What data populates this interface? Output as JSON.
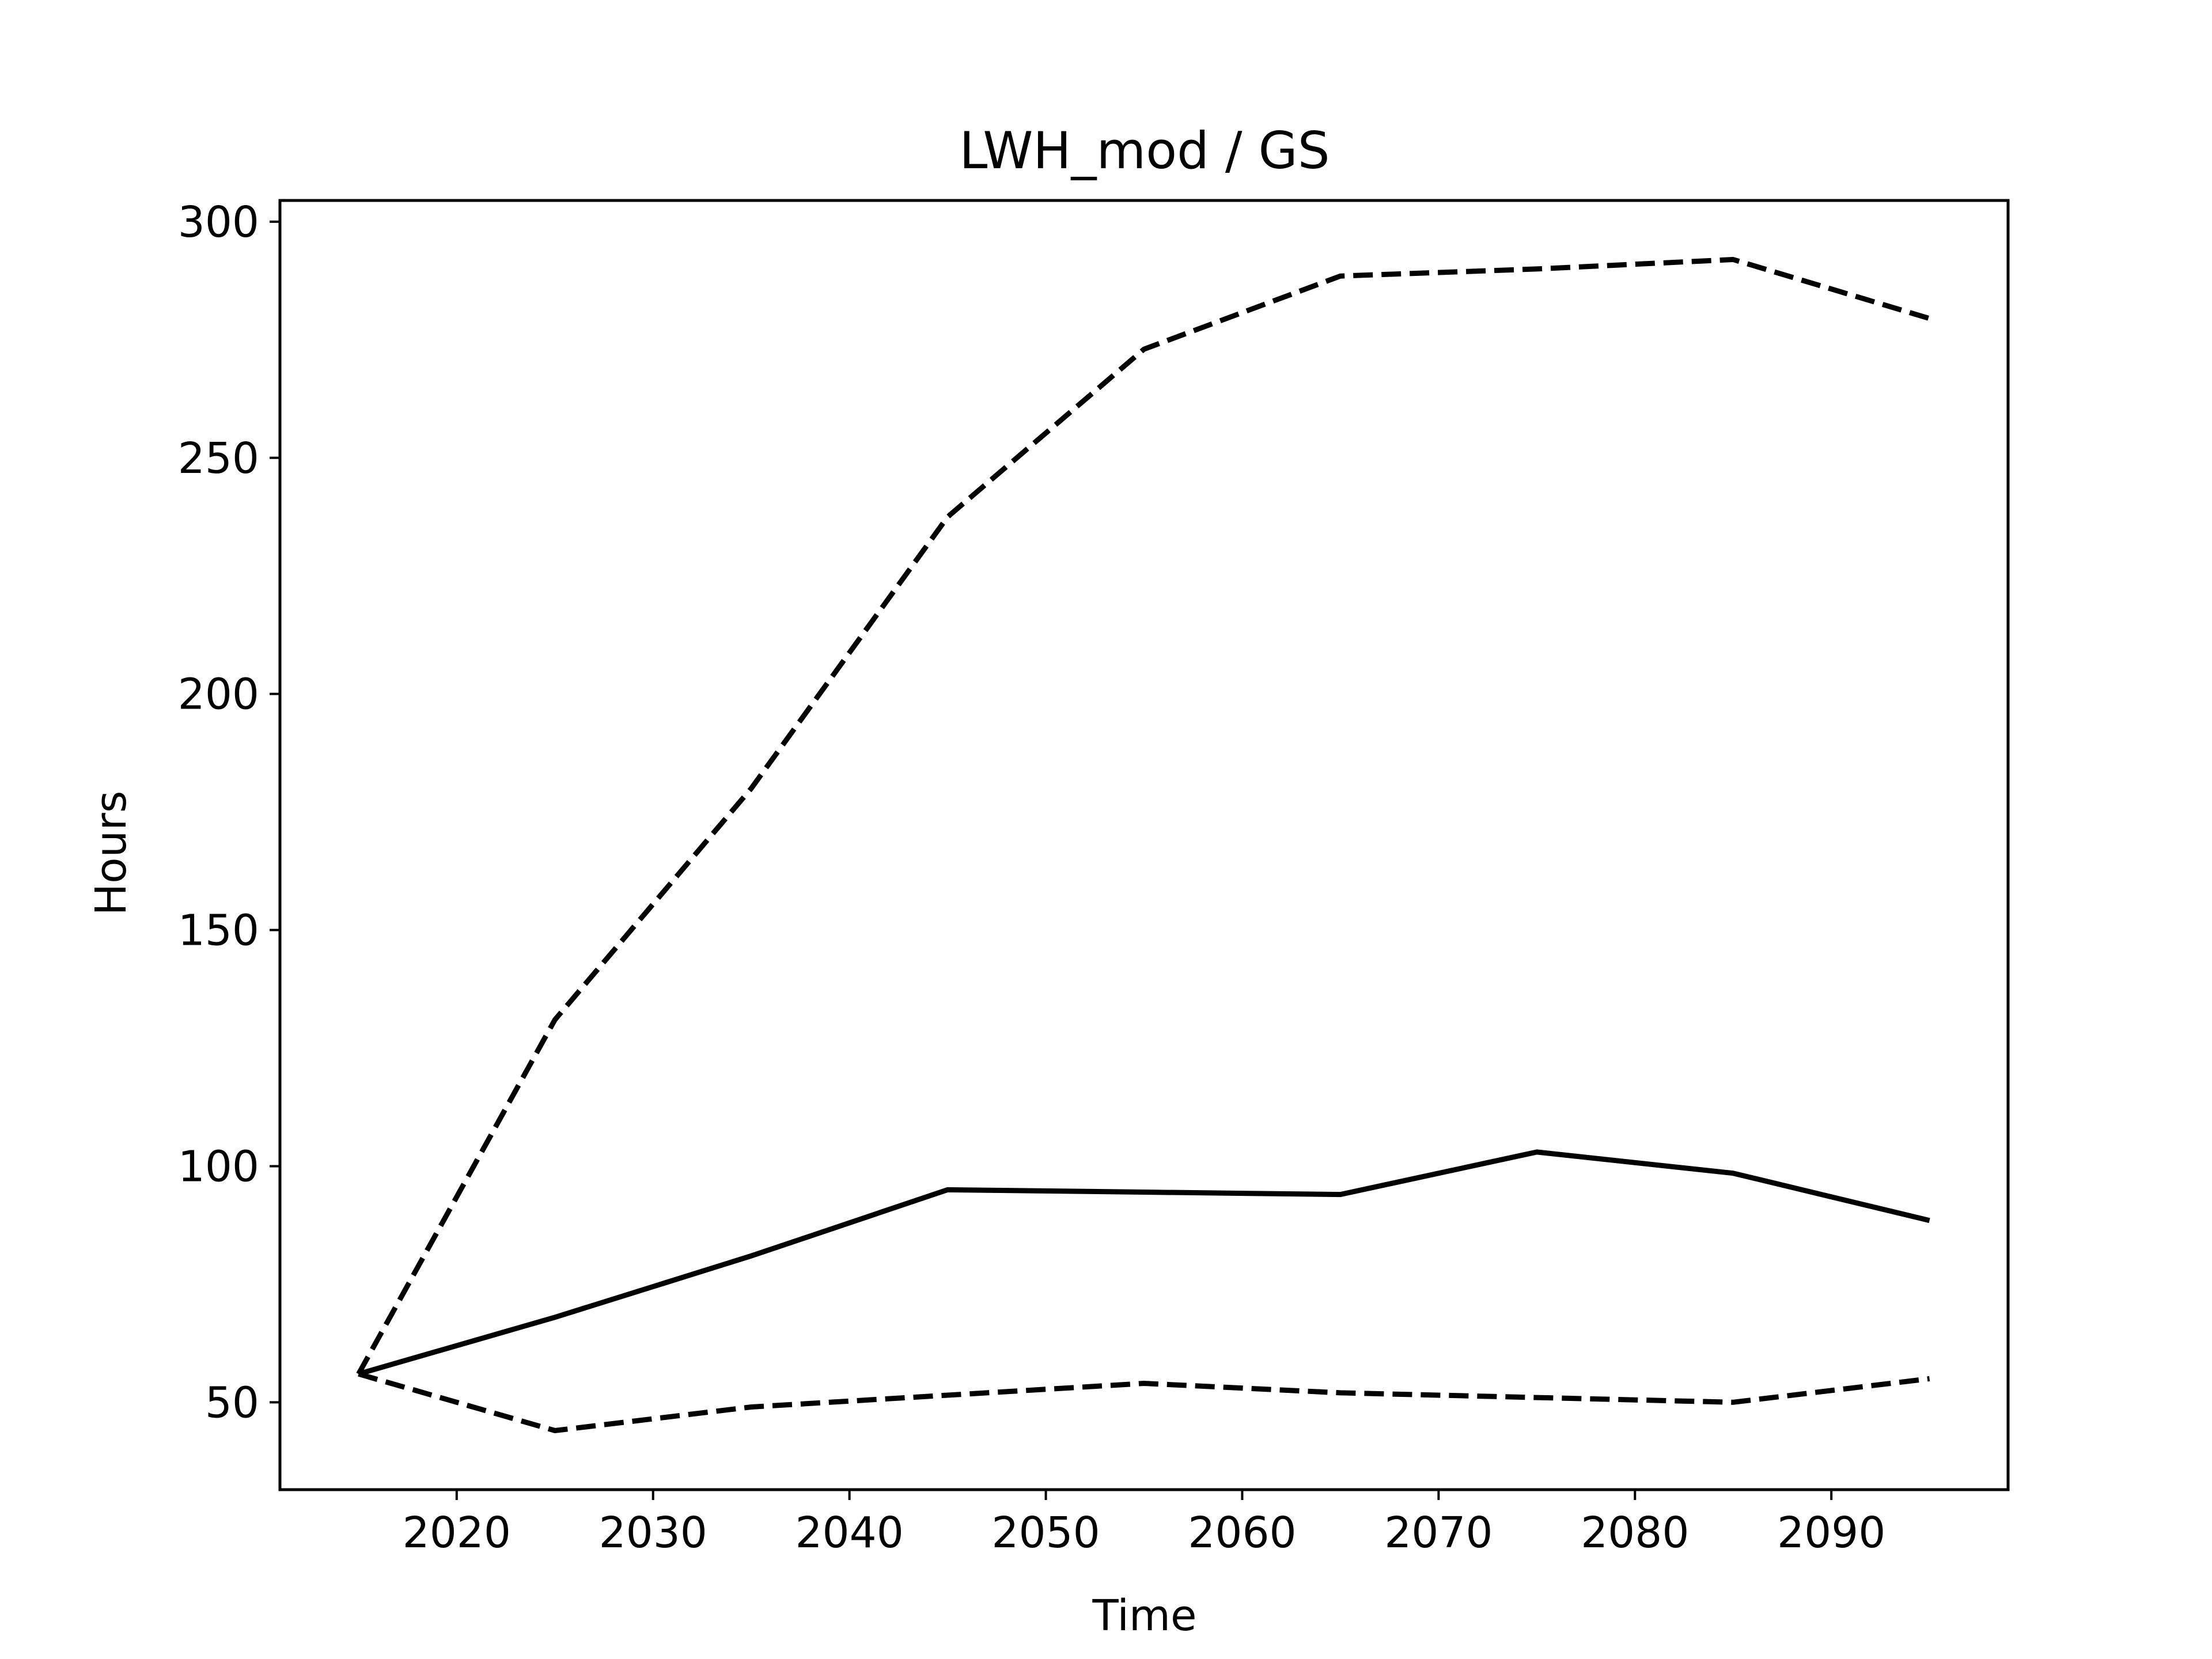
{
  "chart_data": {
    "type": "line",
    "title": "LWH_mod / GS",
    "xlabel": "Time",
    "ylabel": "Hours",
    "xlim": [
      2011,
      2099
    ],
    "ylim": [
      31.5,
      304.5
    ],
    "xticks": [
      2020,
      2030,
      2040,
      2050,
      2060,
      2070,
      2080,
      2090
    ],
    "yticks": [
      50,
      100,
      150,
      200,
      250,
      300
    ],
    "x": [
      2015,
      2025,
      2035,
      2045,
      2055,
      2065,
      2075,
      2085,
      2095
    ],
    "series": [
      {
        "style": "solid",
        "color": "#000000",
        "values": [
          56,
          68,
          81,
          95,
          94.5,
          94,
          103,
          98.5,
          88.5
        ]
      },
      {
        "style": "dashed",
        "color": "#000000",
        "values": [
          56,
          131,
          180,
          237.5,
          273,
          288.5,
          290,
          292,
          279.5
        ]
      },
      {
        "style": "dashed",
        "color": "#000000",
        "values": [
          56,
          44,
          49,
          51.5,
          54,
          52,
          51,
          50,
          55
        ]
      }
    ],
    "grid": false,
    "legend": false
  }
}
